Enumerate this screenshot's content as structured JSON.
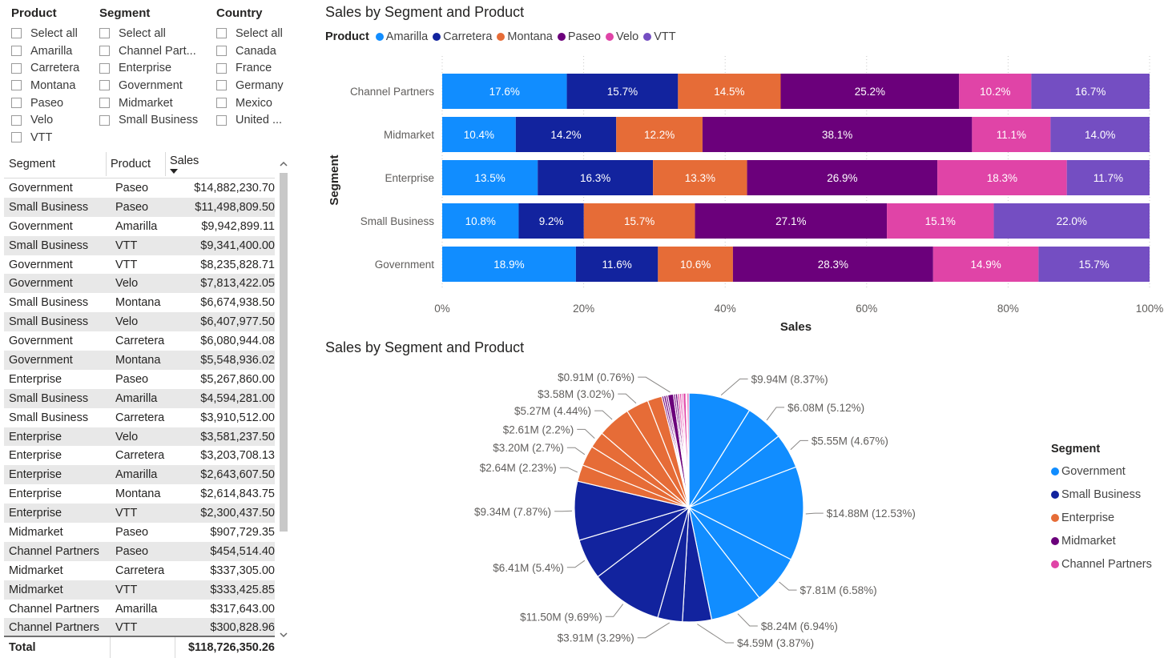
{
  "slicers": [
    {
      "title": "Product",
      "items": [
        "Select all",
        "Amarilla",
        "Carretera",
        "Montana",
        "Paseo",
        "Velo",
        "VTT"
      ]
    },
    {
      "title": "Segment",
      "items": [
        "Select all",
        "Channel Part...",
        "Enterprise",
        "Government",
        "Midmarket",
        "Small Business"
      ]
    },
    {
      "title": "Country",
      "items": [
        "Select all",
        "Canada",
        "France",
        "Germany",
        "Mexico",
        "United ..."
      ]
    }
  ],
  "table": {
    "headers": [
      "Segment",
      "Product",
      "Sales"
    ],
    "rows": [
      [
        "Government",
        "Paseo",
        "$14,882,230.70"
      ],
      [
        "Small Business",
        "Paseo",
        "$11,498,809.50"
      ],
      [
        "Government",
        "Amarilla",
        "$9,942,899.11"
      ],
      [
        "Small Business",
        "VTT",
        "$9,341,400.00"
      ],
      [
        "Government",
        "VTT",
        "$8,235,828.71"
      ],
      [
        "Government",
        "Velo",
        "$7,813,422.05"
      ],
      [
        "Small Business",
        "Montana",
        "$6,674,938.50"
      ],
      [
        "Small Business",
        "Velo",
        "$6,407,977.50"
      ],
      [
        "Government",
        "Carretera",
        "$6,080,944.08"
      ],
      [
        "Government",
        "Montana",
        "$5,548,936.02"
      ],
      [
        "Enterprise",
        "Paseo",
        "$5,267,860.00"
      ],
      [
        "Small Business",
        "Amarilla",
        "$4,594,281.00"
      ],
      [
        "Small Business",
        "Carretera",
        "$3,910,512.00"
      ],
      [
        "Enterprise",
        "Velo",
        "$3,581,237.50"
      ],
      [
        "Enterprise",
        "Carretera",
        "$3,203,708.13"
      ],
      [
        "Enterprise",
        "Amarilla",
        "$2,643,607.50"
      ],
      [
        "Enterprise",
        "Montana",
        "$2,614,843.75"
      ],
      [
        "Enterprise",
        "VTT",
        "$2,300,437.50"
      ],
      [
        "Midmarket",
        "Paseo",
        "$907,729.35"
      ],
      [
        "Channel Partners",
        "Paseo",
        "$454,514.40"
      ],
      [
        "Midmarket",
        "Carretera",
        "$337,305.00"
      ],
      [
        "Midmarket",
        "VTT",
        "$333,425.85"
      ],
      [
        "Channel Partners",
        "Amarilla",
        "$317,643.00"
      ],
      [
        "Channel Partners",
        "VTT",
        "$300,828.96"
      ]
    ],
    "total_label": "Total",
    "total_value": "$118,726,350.26",
    "sort_icon": "sort-descending-icon"
  },
  "colors": {
    "Amarilla": "#118dff",
    "Carretera": "#12239e",
    "Montana": "#e66c37",
    "Paseo": "#6b007b",
    "Velo": "#e044a7",
    "VTT": "#744ec2",
    "Government": "#118dff",
    "Small Business": "#12239e",
    "Enterprise": "#e66c37",
    "Midmarket": "#6b007b",
    "Channel Partners": "#e044a7"
  },
  "chart_data": [
    {
      "type": "bar",
      "stacked": "100%",
      "orientation": "horizontal",
      "title": "Sales by Segment and Product",
      "legend_title": "Product",
      "xlabel": "Sales",
      "ylabel": "Segment",
      "xlim": [
        0,
        100
      ],
      "x_ticks": [
        "0%",
        "20%",
        "40%",
        "60%",
        "80%",
        "100%"
      ],
      "categories": [
        "Channel Partners",
        "Midmarket",
        "Enterprise",
        "Small Business",
        "Government"
      ],
      "series": [
        {
          "name": "Amarilla",
          "values": [
            17.6,
            10.4,
            13.5,
            10.8,
            18.9
          ],
          "labels": [
            "17.6%",
            "10.4%",
            "13.5%",
            "10.8%",
            "18.9%"
          ]
        },
        {
          "name": "Carretera",
          "values": [
            15.7,
            14.2,
            16.3,
            9.2,
            11.6
          ],
          "labels": [
            "15.7%",
            "14.2%",
            "16.3%",
            "9.2%",
            "11.6%"
          ]
        },
        {
          "name": "Montana",
          "values": [
            14.5,
            12.2,
            13.3,
            15.7,
            10.6
          ],
          "labels": [
            "14.5%",
            "12.2%",
            "13.3%",
            "15.7%",
            "10.6%"
          ]
        },
        {
          "name": "Paseo",
          "values": [
            25.2,
            38.1,
            26.9,
            27.1,
            28.3
          ],
          "labels": [
            "25.2%",
            "38.1%",
            "26.9%",
            "27.1%",
            "28.3%"
          ]
        },
        {
          "name": "Velo",
          "values": [
            10.2,
            11.1,
            18.3,
            15.1,
            14.9
          ],
          "labels": [
            "10.2%",
            "11.1%",
            "18.3%",
            "15.1%",
            "14.9%"
          ]
        },
        {
          "name": "VTT",
          "values": [
            16.7,
            14.0,
            11.7,
            22.0,
            15.7
          ],
          "labels": [
            "16.7%",
            "14.0%",
            "11.7%",
            "22.0%",
            "15.7%"
          ]
        }
      ]
    },
    {
      "type": "pie",
      "title": "Sales by Segment and Product",
      "legend_title": "Segment",
      "legend": [
        "Government",
        "Small Business",
        "Enterprise",
        "Midmarket",
        "Channel Partners"
      ],
      "slices": [
        {
          "segment": "Government",
          "product": "Amarilla",
          "value": 9.94,
          "label": "$9.94M (8.37%)"
        },
        {
          "segment": "Government",
          "product": "Carretera",
          "value": 6.08,
          "label": "$6.08M (5.12%)"
        },
        {
          "segment": "Government",
          "product": "Montana",
          "value": 5.55,
          "label": "$5.55M (4.67%)"
        },
        {
          "segment": "Government",
          "product": "Paseo",
          "value": 14.88,
          "label": "$14.88M (12.53%)"
        },
        {
          "segment": "Government",
          "product": "Velo",
          "value": 7.81,
          "label": "$7.81M (6.58%)"
        },
        {
          "segment": "Government",
          "product": "VTT",
          "value": 8.24,
          "label": "$8.24M (6.94%)"
        },
        {
          "segment": "Small Business",
          "product": "Amarilla",
          "value": 4.59,
          "label": "$4.59M (3.87%)"
        },
        {
          "segment": "Small Business",
          "product": "Carretera",
          "value": 3.91,
          "label": "$3.91M (3.29%)"
        },
        {
          "segment": "Small Business",
          "product": "Paseo",
          "value": 11.5,
          "label": "$11.50M (9.69%)"
        },
        {
          "segment": "Small Business",
          "product": "Velo",
          "value": 6.41,
          "label": "$6.41M (5.4%)"
        },
        {
          "segment": "Small Business",
          "product": "VTT",
          "value": 9.34,
          "label": "$9.34M (7.87%)"
        },
        {
          "segment": "Enterprise",
          "product": "Amarilla",
          "value": 2.64,
          "label": "$2.64M (2.23%)"
        },
        {
          "segment": "Enterprise",
          "product": "Carretera",
          "value": 3.2,
          "label": "$3.20M (2.7%)"
        },
        {
          "segment": "Enterprise",
          "product": "Montana",
          "value": 2.61,
          "label": "$2.61M (2.2%)"
        },
        {
          "segment": "Enterprise",
          "product": "Paseo",
          "value": 5.27,
          "label": "$5.27M (4.44%)"
        },
        {
          "segment": "Enterprise",
          "product": "Velo",
          "value": 3.58,
          "label": "$3.58M (3.02%)"
        },
        {
          "segment": "Enterprise",
          "product": "VTT",
          "value": 2.3,
          "label": ""
        },
        {
          "segment": "Midmarket",
          "product": "Amarilla",
          "value": 0.3,
          "label": ""
        },
        {
          "segment": "Midmarket",
          "product": "Carretera",
          "value": 0.34,
          "label": ""
        },
        {
          "segment": "Midmarket",
          "product": "Montana",
          "value": 0.3,
          "label": ""
        },
        {
          "segment": "Midmarket",
          "product": "Paseo",
          "value": 0.91,
          "label": "$0.91M (0.76%)"
        },
        {
          "segment": "Midmarket",
          "product": "Velo",
          "value": 0.3,
          "label": ""
        },
        {
          "segment": "Midmarket",
          "product": "VTT",
          "value": 0.33,
          "label": ""
        },
        {
          "segment": "Channel Partners",
          "product": "Amarilla",
          "value": 0.32,
          "label": ""
        },
        {
          "segment": "Channel Partners",
          "product": "Carretera",
          "value": 0.29,
          "label": ""
        },
        {
          "segment": "Channel Partners",
          "product": "Montana",
          "value": 0.26,
          "label": ""
        },
        {
          "segment": "Channel Partners",
          "product": "Paseo",
          "value": 0.45,
          "label": ""
        },
        {
          "segment": "Channel Partners",
          "product": "Velo",
          "value": 0.18,
          "label": ""
        },
        {
          "segment": "Channel Partners",
          "product": "VTT",
          "value": 0.3,
          "label": ""
        }
      ]
    }
  ]
}
